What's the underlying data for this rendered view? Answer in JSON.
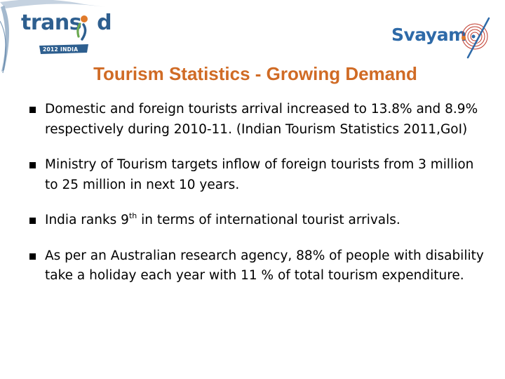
{
  "logos": {
    "transed": {
      "brand_left": "trans",
      "brand_right": "d",
      "tagline": "2012 INDIA",
      "icon": "transed-emblem-icon"
    },
    "svayam": {
      "word": "Svayam",
      "icon": "svayam-spiral-icon"
    }
  },
  "title": "Tourism Statistics - Growing Demand",
  "bullets": [
    {
      "text": "Domestic and foreign tourists arrival increased to 13.8% and 8.9% respectively during 2010-11. (Indian Tourism Statistics 2011,GoI)"
    },
    {
      "text": "Ministry of Tourism targets inflow of foreign tourists from 3 million to 25 million in next 10 years."
    },
    {
      "before": "India ranks 9",
      "sup": "th",
      "after": " in terms of international tourist arrivals."
    },
    {
      "text": "As per an Australian research agency, 88%  of people with disability take a holiday each year with 11 % of total tourism expenditure."
    }
  ],
  "colors": {
    "title": "#d06b25",
    "logo_blue": "#2e5f8f",
    "logo_orange": "#e07a2a",
    "logo_green": "#6aa84f",
    "text": "#000000"
  }
}
